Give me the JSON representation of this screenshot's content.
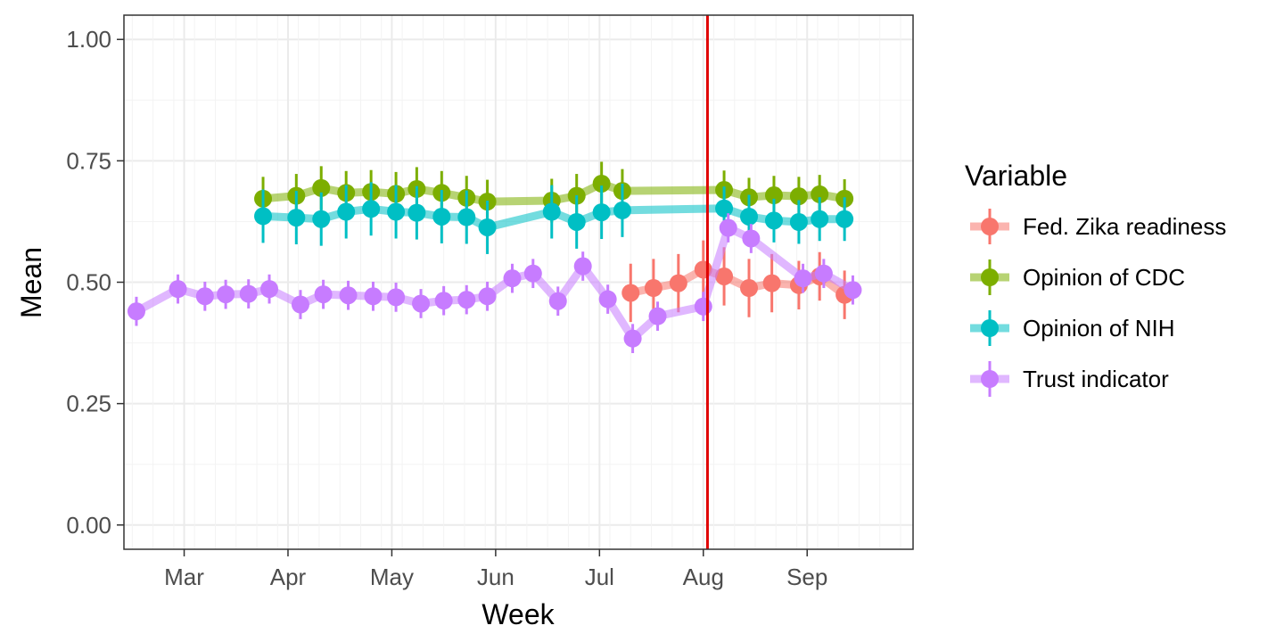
{
  "chart_data": {
    "type": "line",
    "xlabel": "Week",
    "ylabel": "Mean",
    "ylim": [
      -0.05,
      1.05
    ],
    "yticks": [
      {
        "value": 0.0,
        "label": "0.00"
      },
      {
        "value": 0.25,
        "label": "0.25"
      },
      {
        "value": 0.5,
        "label": "0.50"
      },
      {
        "value": 0.75,
        "label": "0.75"
      },
      {
        "value": 1.0,
        "label": "1.00"
      }
    ],
    "xlim": [
      -2.9,
      35.1
    ],
    "xticks": [
      {
        "value": 0,
        "label": "Mar"
      },
      {
        "value": 5,
        "label": "Apr"
      },
      {
        "value": 10,
        "label": "May"
      },
      {
        "value": 15,
        "label": "Jun"
      },
      {
        "value": 20,
        "label": "Jul"
      },
      {
        "value": 25,
        "label": "Aug"
      },
      {
        "value": 30,
        "label": "Sep"
      }
    ],
    "grid": true,
    "reference_line": {
      "x": 25.2,
      "color": "#e00000"
    },
    "legend": {
      "title": "Variable",
      "placement": "right"
    },
    "series": [
      {
        "name": "Fed. Zika readiness",
        "color": "#F8766D",
        "points": [
          [
            21.5,
            0.478,
            0.06
          ],
          [
            22.6,
            0.488,
            0.06
          ],
          [
            23.8,
            0.498,
            0.06
          ],
          [
            25.0,
            0.526,
            0.06
          ],
          [
            26.0,
            0.512,
            0.06
          ],
          [
            27.2,
            0.488,
            0.06
          ],
          [
            28.3,
            0.498,
            0.06
          ],
          [
            29.6,
            0.494,
            0.05
          ],
          [
            30.6,
            0.512,
            0.05
          ],
          [
            31.8,
            0.474,
            0.05
          ]
        ]
      },
      {
        "name": "Opinion of CDC",
        "color": "#7CAE00",
        "points": [
          [
            3.8,
            0.672,
            0.045
          ],
          [
            5.4,
            0.678,
            0.045
          ],
          [
            6.6,
            0.694,
            0.045
          ],
          [
            7.8,
            0.684,
            0.045
          ],
          [
            9.0,
            0.686,
            0.045
          ],
          [
            10.2,
            0.682,
            0.045
          ],
          [
            11.2,
            0.692,
            0.045
          ],
          [
            12.4,
            0.684,
            0.045
          ],
          [
            13.6,
            0.674,
            0.045
          ],
          [
            14.6,
            0.666,
            0.045
          ],
          [
            17.7,
            0.668,
            0.045
          ],
          [
            18.9,
            0.678,
            0.045
          ],
          [
            20.1,
            0.703,
            0.045
          ],
          [
            21.1,
            0.688,
            0.045
          ],
          [
            26.0,
            0.69,
            0.04
          ],
          [
            27.2,
            0.675,
            0.04
          ],
          [
            28.4,
            0.679,
            0.04
          ],
          [
            29.6,
            0.677,
            0.04
          ],
          [
            30.6,
            0.681,
            0.04
          ],
          [
            31.8,
            0.672,
            0.04
          ]
        ]
      },
      {
        "name": "Opinion of NIH",
        "color": "#00BFC4",
        "points": [
          [
            3.8,
            0.636,
            0.055
          ],
          [
            5.4,
            0.633,
            0.055
          ],
          [
            6.6,
            0.63,
            0.055
          ],
          [
            7.8,
            0.645,
            0.055
          ],
          [
            9.0,
            0.651,
            0.055
          ],
          [
            10.2,
            0.645,
            0.055
          ],
          [
            11.2,
            0.643,
            0.055
          ],
          [
            12.4,
            0.635,
            0.055
          ],
          [
            13.6,
            0.634,
            0.055
          ],
          [
            14.6,
            0.613,
            0.055
          ],
          [
            17.7,
            0.645,
            0.055
          ],
          [
            18.9,
            0.624,
            0.055
          ],
          [
            20.1,
            0.644,
            0.055
          ],
          [
            21.1,
            0.648,
            0.055
          ],
          [
            26.0,
            0.652,
            0.045
          ],
          [
            27.2,
            0.635,
            0.045
          ],
          [
            28.4,
            0.627,
            0.045
          ],
          [
            29.6,
            0.624,
            0.045
          ],
          [
            30.6,
            0.63,
            0.045
          ],
          [
            31.8,
            0.63,
            0.045
          ]
        ]
      },
      {
        "name": "Trust indicator",
        "color": "#C77CFF",
        "points": [
          [
            -2.3,
            0.44,
            0.03
          ],
          [
            -0.3,
            0.486,
            0.03
          ],
          [
            1.0,
            0.471,
            0.03
          ],
          [
            2.0,
            0.475,
            0.03
          ],
          [
            3.1,
            0.476,
            0.03
          ],
          [
            4.1,
            0.486,
            0.03
          ],
          [
            5.6,
            0.454,
            0.03
          ],
          [
            6.7,
            0.475,
            0.03
          ],
          [
            7.9,
            0.473,
            0.03
          ],
          [
            9.1,
            0.471,
            0.03
          ],
          [
            10.2,
            0.469,
            0.03
          ],
          [
            11.4,
            0.456,
            0.03
          ],
          [
            12.5,
            0.462,
            0.03
          ],
          [
            13.6,
            0.464,
            0.03
          ],
          [
            14.6,
            0.471,
            0.03
          ],
          [
            15.8,
            0.508,
            0.03
          ],
          [
            16.8,
            0.518,
            0.03
          ],
          [
            18.0,
            0.461,
            0.03
          ],
          [
            19.2,
            0.533,
            0.03
          ],
          [
            20.4,
            0.465,
            0.03
          ],
          [
            21.6,
            0.384,
            0.03
          ],
          [
            22.8,
            0.43,
            0.03
          ],
          [
            25.0,
            0.45,
            0.03
          ],
          [
            26.2,
            0.612,
            0.03
          ],
          [
            27.3,
            0.59,
            0.03
          ],
          [
            29.8,
            0.508,
            0.03
          ],
          [
            30.8,
            0.518,
            0.03
          ],
          [
            32.2,
            0.484,
            0.03
          ]
        ]
      }
    ]
  }
}
